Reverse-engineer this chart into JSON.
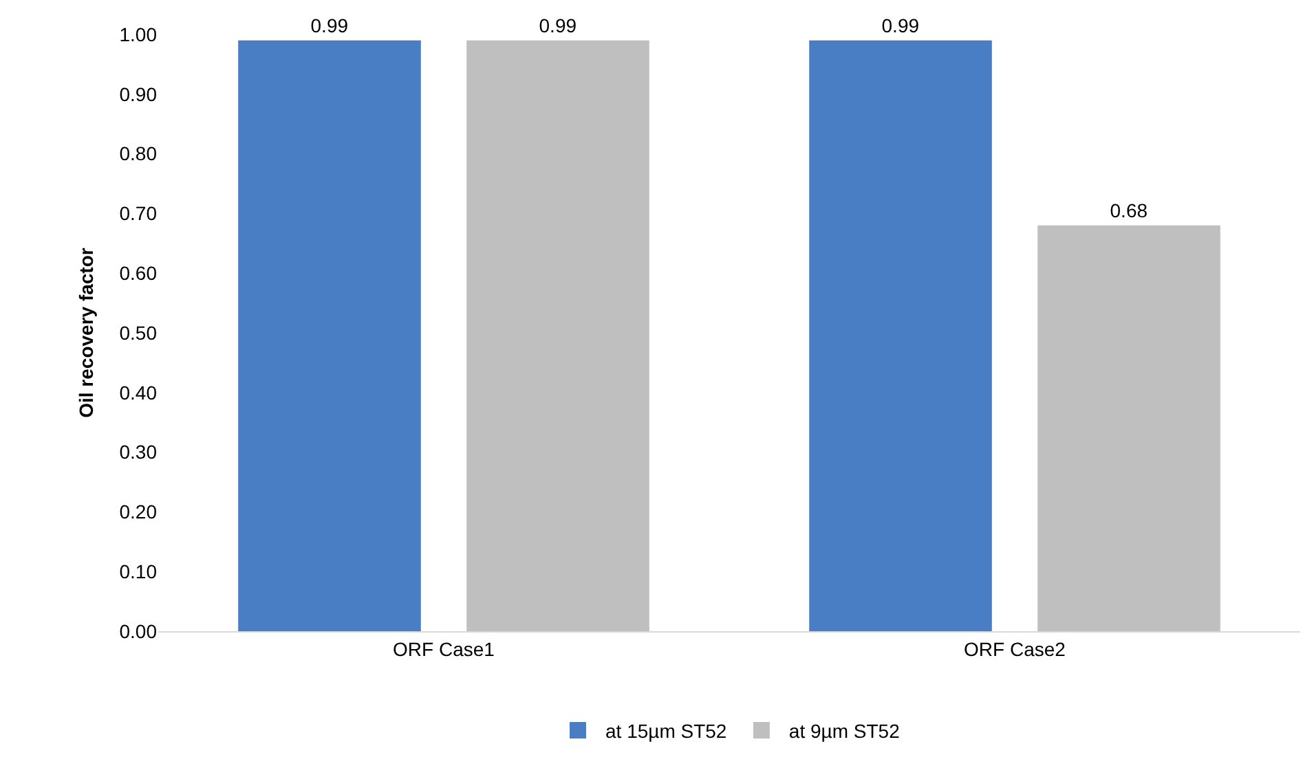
{
  "chart_data": {
    "type": "bar",
    "ylabel": "Oil recovery factor",
    "categories": [
      "ORF Case1",
      "ORF Case2"
    ],
    "series": [
      {
        "name": "at 15µm ST52",
        "color": "#4a7ec4",
        "values": [
          0.99,
          0.99
        ]
      },
      {
        "name": "at 9µm ST52",
        "color": "#bfbfbf",
        "values": [
          0.99,
          0.68
        ]
      }
    ],
    "ylim": [
      0,
      1
    ],
    "yticks": [
      {
        "value": 0,
        "label": "0.00"
      },
      {
        "value": 0.1,
        "label": "0.10"
      },
      {
        "value": 0.2,
        "label": "0.20"
      },
      {
        "value": 0.3,
        "label": "0.30"
      },
      {
        "value": 0.4,
        "label": "0.40"
      },
      {
        "value": 0.5,
        "label": "0.50"
      },
      {
        "value": 0.6,
        "label": "0.60"
      },
      {
        "value": 0.7,
        "label": "0.70"
      },
      {
        "value": 0.8,
        "label": "0.80"
      },
      {
        "value": 0.9,
        "label": "0.90"
      },
      {
        "value": 1,
        "label": "1.00"
      }
    ],
    "data_labels": true,
    "grid": false,
    "legend": "bottom"
  }
}
